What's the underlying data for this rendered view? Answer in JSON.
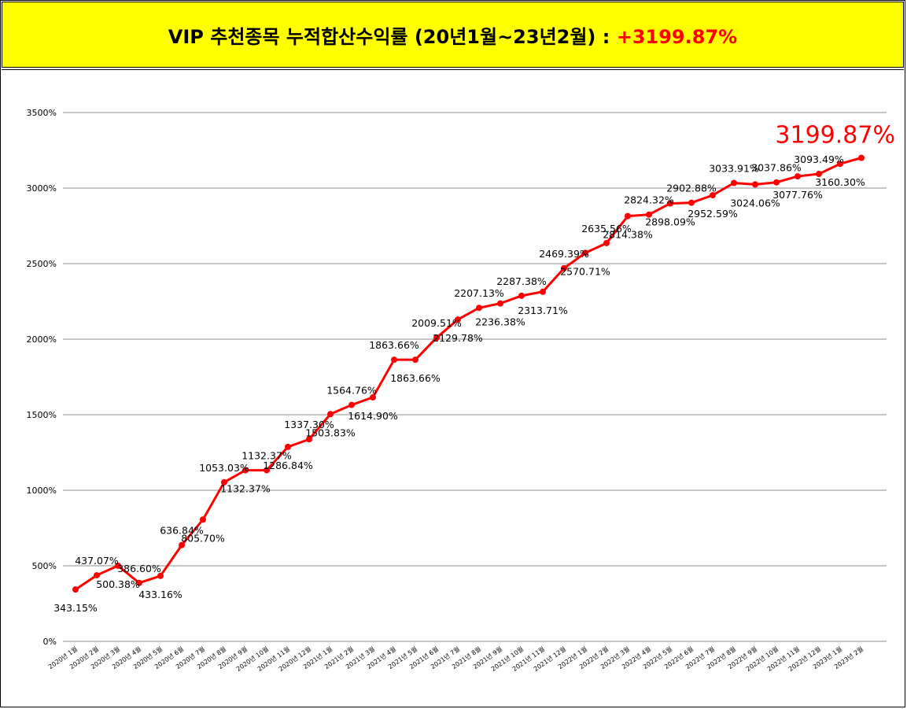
{
  "header": {
    "title": "VIP 추천종목 누적합산수익률 (20년1월~23년2월) : ",
    "title_highlight": "+3199.87%"
  },
  "colors": {
    "series": "#ff0000",
    "header_bg": "#ffff00",
    "grid": "#8c8c8c"
  },
  "chart_data": {
    "type": "line",
    "categories": [
      "2020년 1월",
      "2020년 2월",
      "2020년 3월",
      "2020년 4월",
      "2020년 5월",
      "2020년 6월",
      "2020년 7월",
      "2020년 8월",
      "2020년 9월",
      "2020년 10월",
      "2020년 11월",
      "2020년 12월",
      "2021년 1월",
      "2021년 2월",
      "2021년 3월",
      "2021년 4월",
      "2021년 5월",
      "2021년 6월",
      "2021년 7월",
      "2021년 8월",
      "2021년 9월",
      "2021년 10월",
      "2021년 11월",
      "2021년 12월",
      "2022년 1월",
      "2022년 2월",
      "2022년 3월",
      "2022년 4월",
      "2022년 5월",
      "2022년 6월",
      "2022년 7월",
      "2022년 8월",
      "2022년 9월",
      "2022년 10월",
      "2022년 11월",
      "2022년 12월",
      "2023년 1월",
      "2023년 2월"
    ],
    "values": [
      343.15,
      437.07,
      500.38,
      386.6,
      433.16,
      636.84,
      805.7,
      1053.03,
      1132.37,
      1132.37,
      1286.84,
      1337.3,
      1503.83,
      1564.76,
      1614.9,
      1863.66,
      1863.66,
      2009.51,
      2129.78,
      2207.13,
      2236.38,
      2287.38,
      2313.71,
      2469.39,
      2570.71,
      2635.56,
      2814.38,
      2824.32,
      2898.09,
      2902.88,
      2952.59,
      3033.91,
      3024.06,
      3037.86,
      3077.76,
      3093.49,
      3160.3,
      3199.87
    ],
    "labels": [
      "343.15%",
      "437.07%",
      "500.38%",
      "386.60%",
      "433.16%",
      "636.84%",
      "805.70%",
      "1053.03%",
      "1132.37%",
      "1132.37%",
      "1286.84%",
      "1337.30%",
      "1503.83%",
      "1564.76%",
      "1614.90%",
      "1863.66%",
      "1863.66%",
      "2009.51%",
      "2129.78%",
      "2207.13%",
      "2236.38%",
      "2287.38%",
      "2313.71%",
      "2469.39%",
      "2570.71%",
      "2635.56%",
      "2814.38%",
      "2824.32%",
      "2898.09%",
      "2902.88%",
      "2952.59%",
      "3033.91%",
      "3024.06%",
      "3037.86%",
      "3077.76%",
      "3093.49%",
      "3160.30%",
      ""
    ],
    "final_label": "3199.87%",
    "yticks": [
      "0%",
      "500%",
      "1000%",
      "1500%",
      "2000%",
      "2500%",
      "3000%",
      "3500%"
    ],
    "ylim": [
      0,
      3500
    ],
    "grid": true,
    "legend": "none"
  }
}
